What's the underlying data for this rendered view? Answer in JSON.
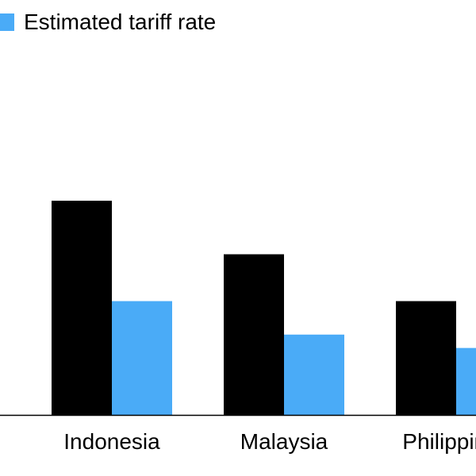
{
  "chart_data": {
    "type": "bar",
    "categories": [
      "Indonesia",
      "Malaysia",
      "Philippines"
    ],
    "series": [
      {
        "values": [
          32,
          24,
          17
        ],
        "color": "#000000"
      },
      {
        "name": "Estimated tariff rate",
        "values": [
          17,
          12,
          10
        ],
        "color": "#4aabf7"
      }
    ],
    "ylim": [
      0,
      40
    ],
    "grid": false,
    "legend_position": "top-left"
  }
}
